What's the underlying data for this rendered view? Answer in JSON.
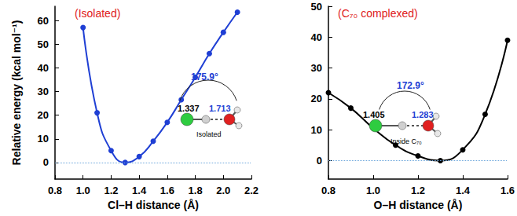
{
  "chart_data": [
    {
      "type": "line",
      "title": "(Isolated)",
      "x_label": "Cl–H distance (Å)",
      "y_label": "Relative energy (kcal mol⁻¹)",
      "x": [
        1.0,
        1.1,
        1.2,
        1.3,
        1.4,
        1.5,
        1.6,
        1.7,
        1.8,
        1.9,
        2.0,
        2.1
      ],
      "series": [
        {
          "name": "Isolated",
          "color": "#1f3fd4",
          "marker": "circle",
          "line_style": "solid",
          "values": [
            57,
            21,
            5,
            0,
            2.5,
            9,
            17,
            26.5,
            36,
            46,
            55,
            63.5
          ]
        }
      ],
      "xlim": [
        0.8,
        2.2
      ],
      "xticks": [
        {
          "value": 0.8,
          "label": "0.8"
        },
        {
          "value": 1.0,
          "label": "1.0"
        },
        {
          "value": 1.2,
          "label": "1.2"
        },
        {
          "value": 1.4,
          "label": "1.4"
        },
        {
          "value": 1.6,
          "label": "1.6"
        },
        {
          "value": 1.8,
          "label": "1.8"
        },
        {
          "value": 2.0,
          "label": "2.0"
        },
        {
          "value": 2.2,
          "label": "2.2"
        }
      ],
      "ylim": [
        -7,
        66
      ],
      "yticks": [
        0,
        10,
        20,
        30,
        40,
        50,
        60
      ],
      "baseline": 0,
      "grid": false,
      "annotations": [
        "175.9°",
        "1.337",
        "1.713",
        "Isolated"
      ]
    },
    {
      "type": "line",
      "title": "(C₇₀ complexed)",
      "x_label": "O–H distance (Å)",
      "x": [
        0.8,
        0.9,
        1.0,
        1.1,
        1.2,
        1.3,
        1.4,
        1.5,
        1.6
      ],
      "series": [
        {
          "name": "C₇₀ complexed",
          "color": "#000000",
          "marker": "circle",
          "line_style": "solid",
          "values": [
            22,
            17,
            10.5,
            5,
            1.5,
            0,
            3.5,
            15,
            39
          ]
        }
      ],
      "xlim": [
        0.8,
        1.6
      ],
      "xticks": [
        {
          "value": 0.8,
          "label": "0.8"
        },
        {
          "value": 1.0,
          "label": "1.0"
        },
        {
          "value": 1.2,
          "label": "1.2"
        },
        {
          "value": 1.4,
          "label": "1.4"
        },
        {
          "value": 1.6,
          "label": "1.6"
        }
      ],
      "ylim": [
        -6,
        50
      ],
      "yticks": [
        0,
        10,
        20,
        30,
        40,
        50
      ],
      "baseline": 0,
      "grid": false,
      "annotations": [
        "172.9°",
        "1.405",
        "1.283",
        "Inside C₇₀"
      ]
    }
  ]
}
